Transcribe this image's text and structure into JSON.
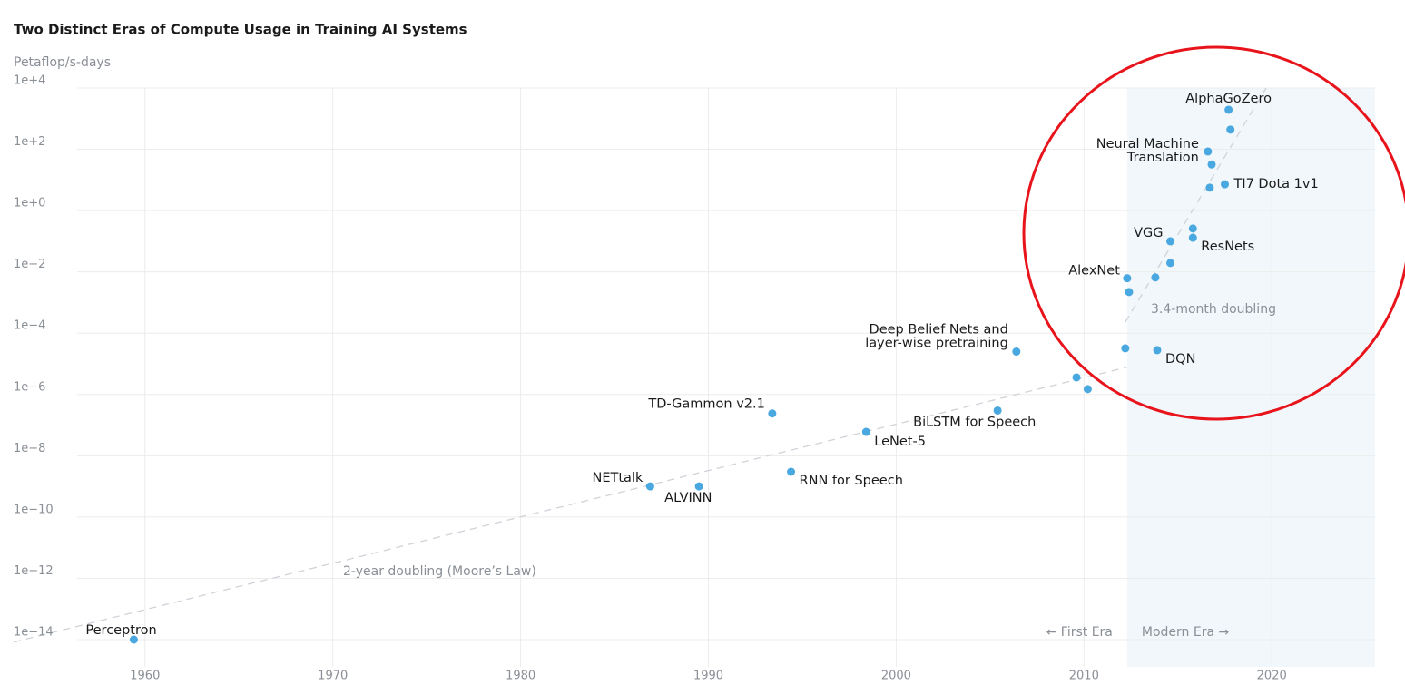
{
  "chart_data": {
    "type": "scatter",
    "title": "Two Distinct Eras of Compute Usage in Training AI Systems",
    "y_label": "Petaflop/s-days",
    "xlim": [
      1953,
      2025.5
    ],
    "xticks": [
      1960,
      1970,
      1980,
      1990,
      2000,
      2010,
      2020
    ],
    "ylim": [
      1e-14,
      10000
    ],
    "ylog": true,
    "yticks": [
      {
        "value": 1e-14,
        "label": "1e−14"
      },
      {
        "value": 1e-12,
        "label": "1e−12"
      },
      {
        "value": 1e-10,
        "label": "1e−10"
      },
      {
        "value": 1e-08,
        "label": "1e−8"
      },
      {
        "value": 1e-06,
        "label": "1e−6"
      },
      {
        "value": 0.0001,
        "label": "1e−4"
      },
      {
        "value": 0.01,
        "label": "1e−2"
      },
      {
        "value": 1,
        "label": "1e+0"
      },
      {
        "value": 100,
        "label": "1e+2"
      },
      {
        "value": 10000,
        "label": "1e+4"
      }
    ],
    "grid": true,
    "color": "#4aa8e0",
    "x": [
      1959.4,
      1986.9,
      1989.5,
      1993.4,
      1994.4,
      1998.4,
      2005.4,
      2006.4,
      2009.6,
      2010.2,
      2012.2,
      2012.3,
      2012.4,
      2013.8,
      2013.9,
      2014.6,
      2014.6,
      2015.8,
      2015.8,
      2016.6,
      2016.7,
      2016.8,
      2017.5,
      2017.7,
      2017.8
    ],
    "values": [
      1e-14,
      1e-09,
      1e-09,
      2.4e-07,
      3e-09,
      6e-08,
      3e-07,
      2.5e-05,
      3.6e-06,
      1.5e-06,
      3.2e-05,
      0.0062,
      0.0022,
      0.0066,
      2.8e-05,
      0.1,
      0.0195,
      0.13,
      0.26,
      85,
      5.6,
      32,
      7.2,
      1950,
      440
    ],
    "point_labels": [
      "Perceptron",
      "NETtalk",
      "ALVINN",
      "TD-Gammon v2.1",
      "RNN for Speech",
      "LeNet-5",
      "BiLSTM for Speech",
      "Deep Belief Nets and\nlayer-wise pretraining",
      null,
      null,
      null,
      "AlexNet",
      null,
      null,
      "DQN",
      "VGG",
      null,
      "ResNets",
      null,
      "Neural Machine\nTranslation",
      null,
      null,
      "TI7 Dota 1v1",
      "AlphaGoZero",
      null
    ],
    "trend_lines": [
      {
        "label": "2-year doubling (Moore’s Law)",
        "x": [
          1953,
          2012.3
        ],
        "values": [
          8.3e-15,
          7.8e-06
        ]
      },
      {
        "label": "3.4-month doubling",
        "x": [
          2012.2,
          2019.7
        ],
        "values": [
          0.00023,
          10000
        ]
      }
    ],
    "modern_era_start": 2012.3,
    "era_labels": [
      "← First Era",
      "Modern Era →"
    ]
  }
}
